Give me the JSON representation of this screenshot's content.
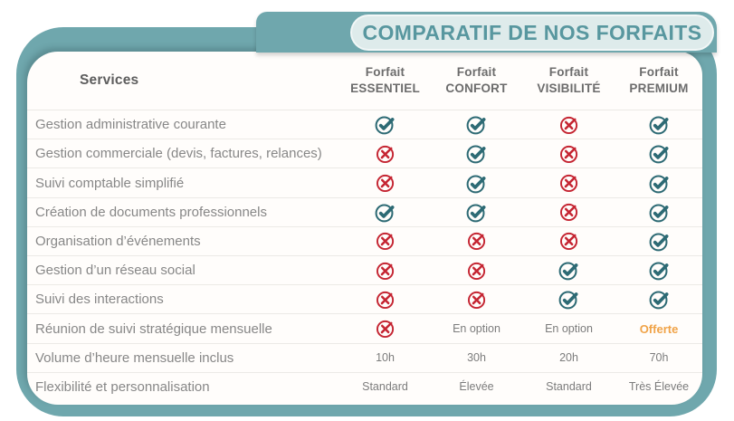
{
  "banner": {
    "title": "COMPARATIF DE NOS FORFAITS"
  },
  "colors": {
    "frame_teal": "#6fa7ad",
    "title_text": "#58979f",
    "pill_background": "#deebeb",
    "check_teal": "#2d6a74",
    "cross_red": "#c52532",
    "offer_orange": "#f0a348"
  },
  "table": {
    "services_header": "Services",
    "columns": [
      {
        "line1": "Forfait",
        "line2": "ESSENTIEL"
      },
      {
        "line1": "Forfait",
        "line2": "CONFORT"
      },
      {
        "line1": "Forfait",
        "line2": "VISIBILITÉ"
      },
      {
        "line1": "Forfait",
        "line2": "PREMIUM"
      }
    ],
    "rows": [
      {
        "label": "Gestion administrative courante",
        "cells": [
          {
            "type": "check"
          },
          {
            "type": "check"
          },
          {
            "type": "cross"
          },
          {
            "type": "check"
          }
        ]
      },
      {
        "label": "Gestion commerciale (devis, factures, relances)",
        "cells": [
          {
            "type": "cross"
          },
          {
            "type": "check"
          },
          {
            "type": "cross"
          },
          {
            "type": "check"
          }
        ]
      },
      {
        "label": "Suivi comptable simplifié",
        "cells": [
          {
            "type": "cross"
          },
          {
            "type": "check"
          },
          {
            "type": "cross"
          },
          {
            "type": "check"
          }
        ]
      },
      {
        "label": "Création de documents professionnels",
        "cells": [
          {
            "type": "check"
          },
          {
            "type": "check"
          },
          {
            "type": "cross"
          },
          {
            "type": "check"
          }
        ]
      },
      {
        "label": "Organisation d’événements",
        "cells": [
          {
            "type": "cross"
          },
          {
            "type": "cross"
          },
          {
            "type": "cross"
          },
          {
            "type": "check"
          }
        ]
      },
      {
        "label": "Gestion d’un réseau social",
        "cells": [
          {
            "type": "cross"
          },
          {
            "type": "cross"
          },
          {
            "type": "check"
          },
          {
            "type": "check"
          }
        ]
      },
      {
        "label": "Suivi des interactions",
        "cells": [
          {
            "type": "cross"
          },
          {
            "type": "cross"
          },
          {
            "type": "check"
          },
          {
            "type": "check"
          }
        ]
      },
      {
        "label": "Réunion de suivi stratégique mensuelle",
        "cells": [
          {
            "type": "cross"
          },
          {
            "type": "text",
            "value": "En option"
          },
          {
            "type": "text",
            "value": "En option"
          },
          {
            "type": "text",
            "value": "Offerte",
            "highlight": true
          }
        ]
      },
      {
        "label": "Volume d’heure mensuelle inclus",
        "cells": [
          {
            "type": "text",
            "value": "10h"
          },
          {
            "type": "text",
            "value": "30h"
          },
          {
            "type": "text",
            "value": "20h"
          },
          {
            "type": "text",
            "value": "70h"
          }
        ]
      },
      {
        "label": "Flexibilité et personnalisation",
        "cells": [
          {
            "type": "text",
            "value": "Standard"
          },
          {
            "type": "text",
            "value": "Élevée"
          },
          {
            "type": "text",
            "value": "Standard"
          },
          {
            "type": "text",
            "value": "Très Élevée"
          }
        ]
      }
    ]
  }
}
